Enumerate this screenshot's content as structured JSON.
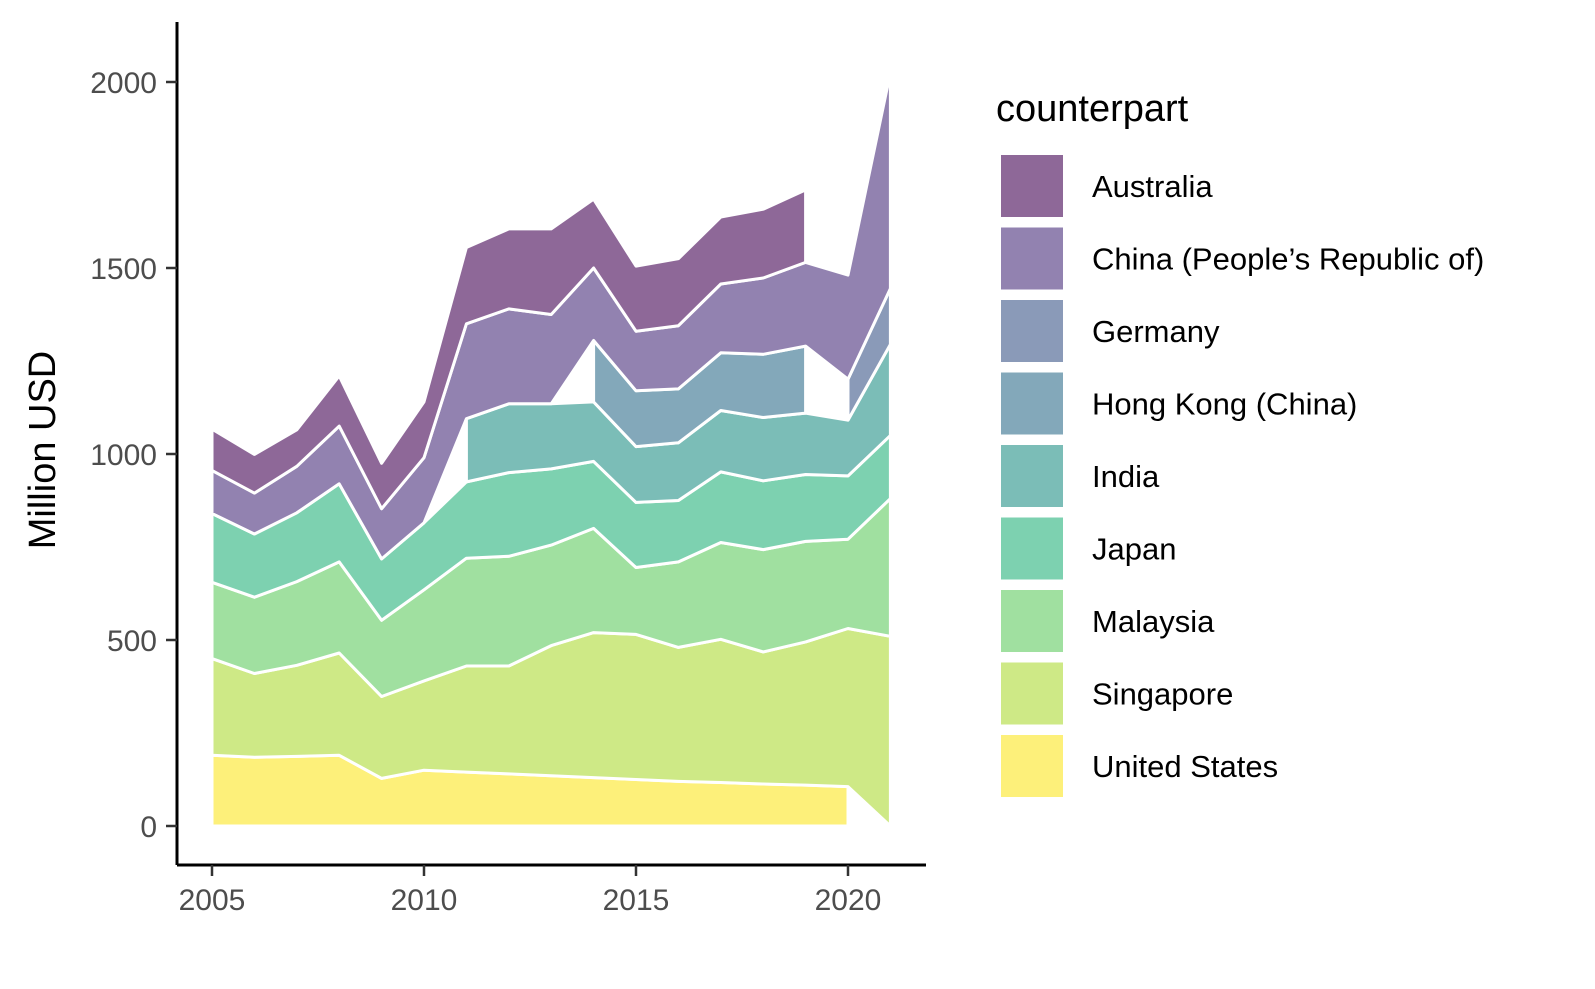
{
  "chart_data": {
    "type": "area",
    "stacked": true,
    "ylabel": "Million USD",
    "xlabel": "",
    "xlim": [
      2005,
      2021
    ],
    "ylim": [
      0,
      2000
    ],
    "x_ticks": [
      2005,
      2010,
      2015,
      2020
    ],
    "y_ticks": [
      0,
      500,
      1000,
      1500,
      2000
    ],
    "grid": false,
    "legend_title": "counterpart",
    "legend_position": "right",
    "stack_order": [
      "United States",
      "Singapore",
      "Malaysia",
      "Japan",
      "India",
      "Hong Kong (China)",
      "Germany",
      "China (People’s Republic of)",
      "Australia"
    ],
    "series": [
      {
        "name": "Australia",
        "color": "#8e6898",
        "points": [
          [
            2005,
            111
          ],
          [
            2006,
            104
          ],
          [
            2007,
            98
          ],
          [
            2008,
            135
          ],
          [
            2009,
            122
          ],
          [
            2010,
            150
          ],
          [
            2011,
            205
          ],
          [
            2012,
            215
          ],
          [
            2013,
            230
          ],
          [
            2014,
            185
          ],
          [
            2015,
            175
          ],
          [
            2016,
            180
          ],
          [
            2017,
            180
          ],
          [
            2018,
            185
          ],
          [
            2019,
            195
          ]
        ]
      },
      {
        "name": "China (People’s Republic of)",
        "color": "#9282b0",
        "points": [
          [
            2005,
            116
          ],
          [
            2006,
            110
          ],
          [
            2007,
            125
          ],
          [
            2008,
            155
          ],
          [
            2009,
            135
          ],
          [
            2010,
            175
          ],
          [
            2011,
            255
          ],
          [
            2012,
            255
          ],
          [
            2013,
            240
          ],
          [
            2014,
            195
          ],
          [
            2015,
            160
          ],
          [
            2016,
            170
          ],
          [
            2017,
            185
          ],
          [
            2018,
            205
          ],
          [
            2019,
            225
          ],
          [
            2020,
            280
          ],
          [
            2021,
            580
          ]
        ]
      },
      {
        "name": "Germany",
        "color": "#8a9ab8",
        "points": [
          [
            2020,
            110
          ],
          [
            2021,
            150
          ]
        ]
      },
      {
        "name": "Hong Kong (China)",
        "color": "#83a8ba",
        "points": [
          [
            2014,
            165
          ],
          [
            2015,
            150
          ],
          [
            2016,
            145
          ],
          [
            2017,
            155
          ],
          [
            2018,
            170
          ],
          [
            2019,
            180
          ]
        ]
      },
      {
        "name": "India",
        "color": "#7bbdb7",
        "points": [
          [
            2011,
            170
          ],
          [
            2012,
            185
          ],
          [
            2013,
            175
          ],
          [
            2014,
            160
          ],
          [
            2015,
            150
          ],
          [
            2016,
            155
          ],
          [
            2017,
            165
          ],
          [
            2018,
            170
          ],
          [
            2019,
            165
          ],
          [
            2020,
            150
          ],
          [
            2021,
            245
          ]
        ]
      },
      {
        "name": "Japan",
        "color": "#7dd1b0",
        "points": [
          [
            2005,
            185
          ],
          [
            2006,
            170
          ],
          [
            2007,
            185
          ],
          [
            2008,
            210
          ],
          [
            2009,
            165
          ],
          [
            2010,
            180
          ],
          [
            2011,
            205
          ],
          [
            2012,
            225
          ],
          [
            2013,
            205
          ],
          [
            2014,
            180
          ],
          [
            2015,
            175
          ],
          [
            2016,
            165
          ],
          [
            2017,
            190
          ],
          [
            2018,
            185
          ],
          [
            2019,
            180
          ],
          [
            2020,
            170
          ],
          [
            2021,
            170
          ]
        ]
      },
      {
        "name": "Malaysia",
        "color": "#a0e0a0",
        "points": [
          [
            2005,
            205
          ],
          [
            2006,
            205
          ],
          [
            2007,
            225
          ],
          [
            2008,
            245
          ],
          [
            2009,
            205
          ],
          [
            2010,
            245
          ],
          [
            2011,
            290
          ],
          [
            2012,
            295
          ],
          [
            2013,
            270
          ],
          [
            2014,
            280
          ],
          [
            2015,
            180
          ],
          [
            2016,
            230
          ],
          [
            2017,
            260
          ],
          [
            2018,
            275
          ],
          [
            2019,
            270
          ],
          [
            2020,
            240
          ],
          [
            2021,
            370
          ]
        ]
      },
      {
        "name": "Singapore",
        "color": "#cee986",
        "points": [
          [
            2005,
            260
          ],
          [
            2006,
            225
          ],
          [
            2007,
            245
          ],
          [
            2008,
            275
          ],
          [
            2009,
            220
          ],
          [
            2010,
            240
          ],
          [
            2011,
            285
          ],
          [
            2012,
            290
          ],
          [
            2013,
            350
          ],
          [
            2014,
            390
          ],
          [
            2015,
            390
          ],
          [
            2016,
            360
          ],
          [
            2017,
            385
          ],
          [
            2018,
            355
          ],
          [
            2019,
            385
          ],
          [
            2020,
            425
          ],
          [
            2021,
            510
          ]
        ]
      },
      {
        "name": "United States",
        "color": "#fdf07a",
        "points": [
          [
            2005,
            190
          ],
          [
            2006,
            185
          ],
          [
            2007,
            187
          ],
          [
            2008,
            190
          ],
          [
            2009,
            128
          ],
          [
            2010,
            150
          ],
          [
            2011,
            145
          ],
          [
            2012,
            140
          ],
          [
            2013,
            135
          ],
          [
            2014,
            130
          ],
          [
            2015,
            125
          ],
          [
            2016,
            120
          ],
          [
            2017,
            117
          ],
          [
            2018,
            113
          ],
          [
            2019,
            110
          ],
          [
            2020,
            106
          ]
        ]
      }
    ]
  }
}
